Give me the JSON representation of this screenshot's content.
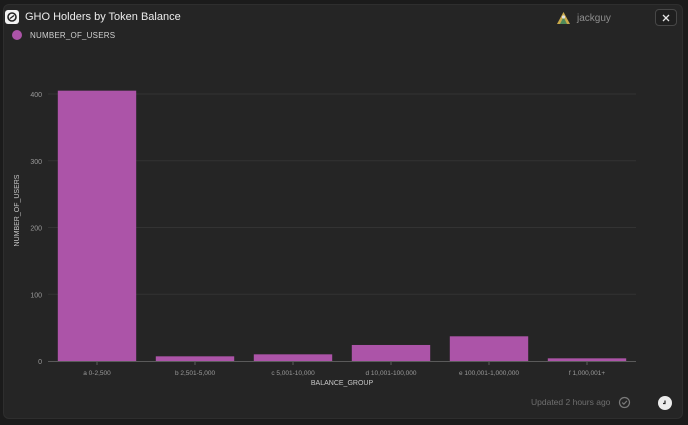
{
  "window": {
    "title": "GHO Holders by Token Balance",
    "user": "jackguy",
    "updated": "Updated 2 hours ago"
  },
  "colors": {
    "bar": "#ac54a8",
    "grid": "#333333",
    "axis": "#5a5a5a",
    "tick_text": "#9a9a9a"
  },
  "chart_data": {
    "type": "bar",
    "title": "GHO Holders by Token Balance",
    "xlabel": "BALANCE_GROUP",
    "ylabel": "NUMBER_OF_USERS",
    "categories": [
      "a 0-2,500",
      "b 2,501-5,000",
      "c 5,001-10,000",
      "d 10,001-100,000",
      "e 100,001-1,000,000",
      "f 1,000,001+"
    ],
    "series": [
      {
        "name": "NUMBER_OF_USERS",
        "values": [
          405,
          7,
          10,
          24,
          37,
          4
        ]
      }
    ],
    "ylim": [
      0,
      400
    ],
    "yticks": [
      "0",
      "100",
      "200",
      "300",
      "400"
    ],
    "grid": true,
    "legend": "top-left"
  }
}
